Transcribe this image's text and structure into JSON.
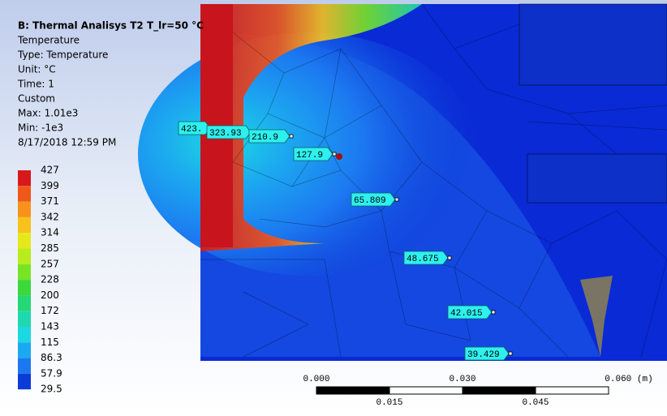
{
  "header": {
    "title": "B: Thermal Analisys T2 T_lr=50 °C",
    "lines": [
      "Temperature",
      "Type: Temperature",
      "Unit: °C",
      "Time: 1",
      "Custom",
      "Max: 1.01e3",
      "Min: -1e3",
      "8/17/2018 12:59 PM"
    ]
  },
  "legend": {
    "labels": [
      427,
      399,
      371,
      342,
      314,
      285,
      257,
      228,
      200,
      172,
      143,
      115,
      86.3,
      57.9,
      29.5
    ],
    "colors": [
      "#d7191c",
      "#f0581a",
      "#f8921c",
      "#f8c21c",
      "#e6e81c",
      "#b8ec1c",
      "#78e424",
      "#3cd83c",
      "#24d874",
      "#20d8b0",
      "#1cd8e0",
      "#1ca8f0",
      "#1c78f0",
      "#0c3cd8"
    ]
  },
  "probes": [
    "423.",
    "323.93",
    "210.9",
    "127.9",
    "65.809",
    "48.675",
    "42.015",
    "39.429"
  ],
  "scale_bar": {
    "top_labels": [
      "0.000",
      "0.030",
      "0.060 (m)"
    ],
    "bottom_labels": [
      "0.015",
      "0.045"
    ]
  }
}
